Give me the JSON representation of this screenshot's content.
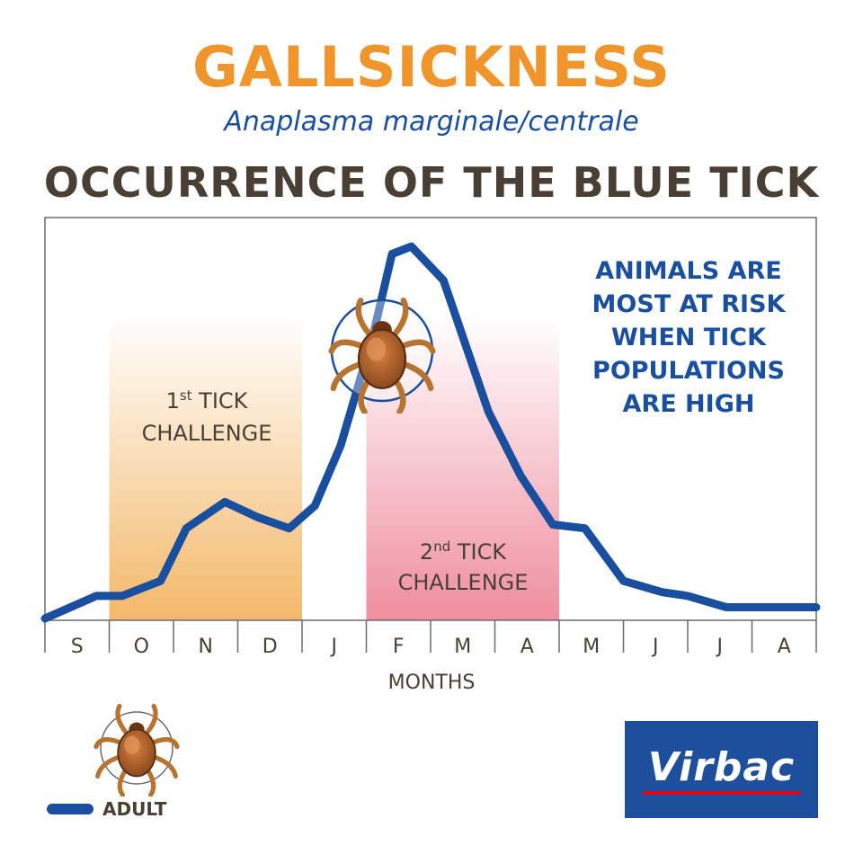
{
  "header": {
    "title": "GALLSICKNESS",
    "subtitle": "Anaplasma marginale/centrale",
    "heading": "OCCURRENCE OF THE BLUE TICK"
  },
  "annotations": {
    "challenge1_prefix": "1",
    "challenge1_sup": "st",
    "challenge1_rest": " TICK",
    "challenge1_line2": "CHALLENGE",
    "challenge2_prefix": "2",
    "challenge2_sup": "nd",
    "challenge2_rest": " TICK",
    "challenge2_line2": "CHALLENGE",
    "risk_lines": [
      "ANIMALS ARE",
      "MOST AT RISK",
      "WHEN TICK",
      "POPULATIONS",
      "ARE HIGH"
    ]
  },
  "legend": {
    "label": "ADULT"
  },
  "logo": {
    "text": "Virbac"
  },
  "colors": {
    "line": "#1a4fa0",
    "title": "#f0952b",
    "heading": "#4a3f35",
    "challenge1": "#f3b86a",
    "challenge2": "#ef8e9e"
  },
  "chart_data": {
    "type": "line",
    "title": "OCCURRENCE OF THE BLUE TICK",
    "xlabel": "MONTHS",
    "ylabel": "",
    "categories": [
      "S",
      "O",
      "N",
      "D",
      "J",
      "F",
      "M",
      "A",
      "M",
      "J",
      "J",
      "A"
    ],
    "x_range": [
      0,
      12
    ],
    "ylim": [
      0,
      100
    ],
    "grid": false,
    "series": [
      {
        "name": "ADULT",
        "x": [
          0,
          0.8,
          1.2,
          1.8,
          2.2,
          2.8,
          3.3,
          3.8,
          4.2,
          4.6,
          5.1,
          5.4,
          5.7,
          6.2,
          6.5,
          6.9,
          7.4,
          7.9,
          8.4,
          9.0,
          9.6,
          10.0,
          10.6,
          11.0,
          11.6,
          12.0
        ],
        "values": [
          0,
          6,
          6,
          10,
          24,
          31,
          27,
          24,
          30,
          46,
          75,
          97,
          99,
          90,
          75,
          55,
          38,
          25,
          24,
          10,
          7,
          6,
          3,
          3,
          3,
          3
        ]
      }
    ],
    "highlight_regions": [
      {
        "label": "1st TICK CHALLENGE",
        "x_start": 1,
        "x_end": 4
      },
      {
        "label": "2nd TICK CHALLENGE",
        "x_start": 5,
        "x_end": 8
      }
    ]
  }
}
